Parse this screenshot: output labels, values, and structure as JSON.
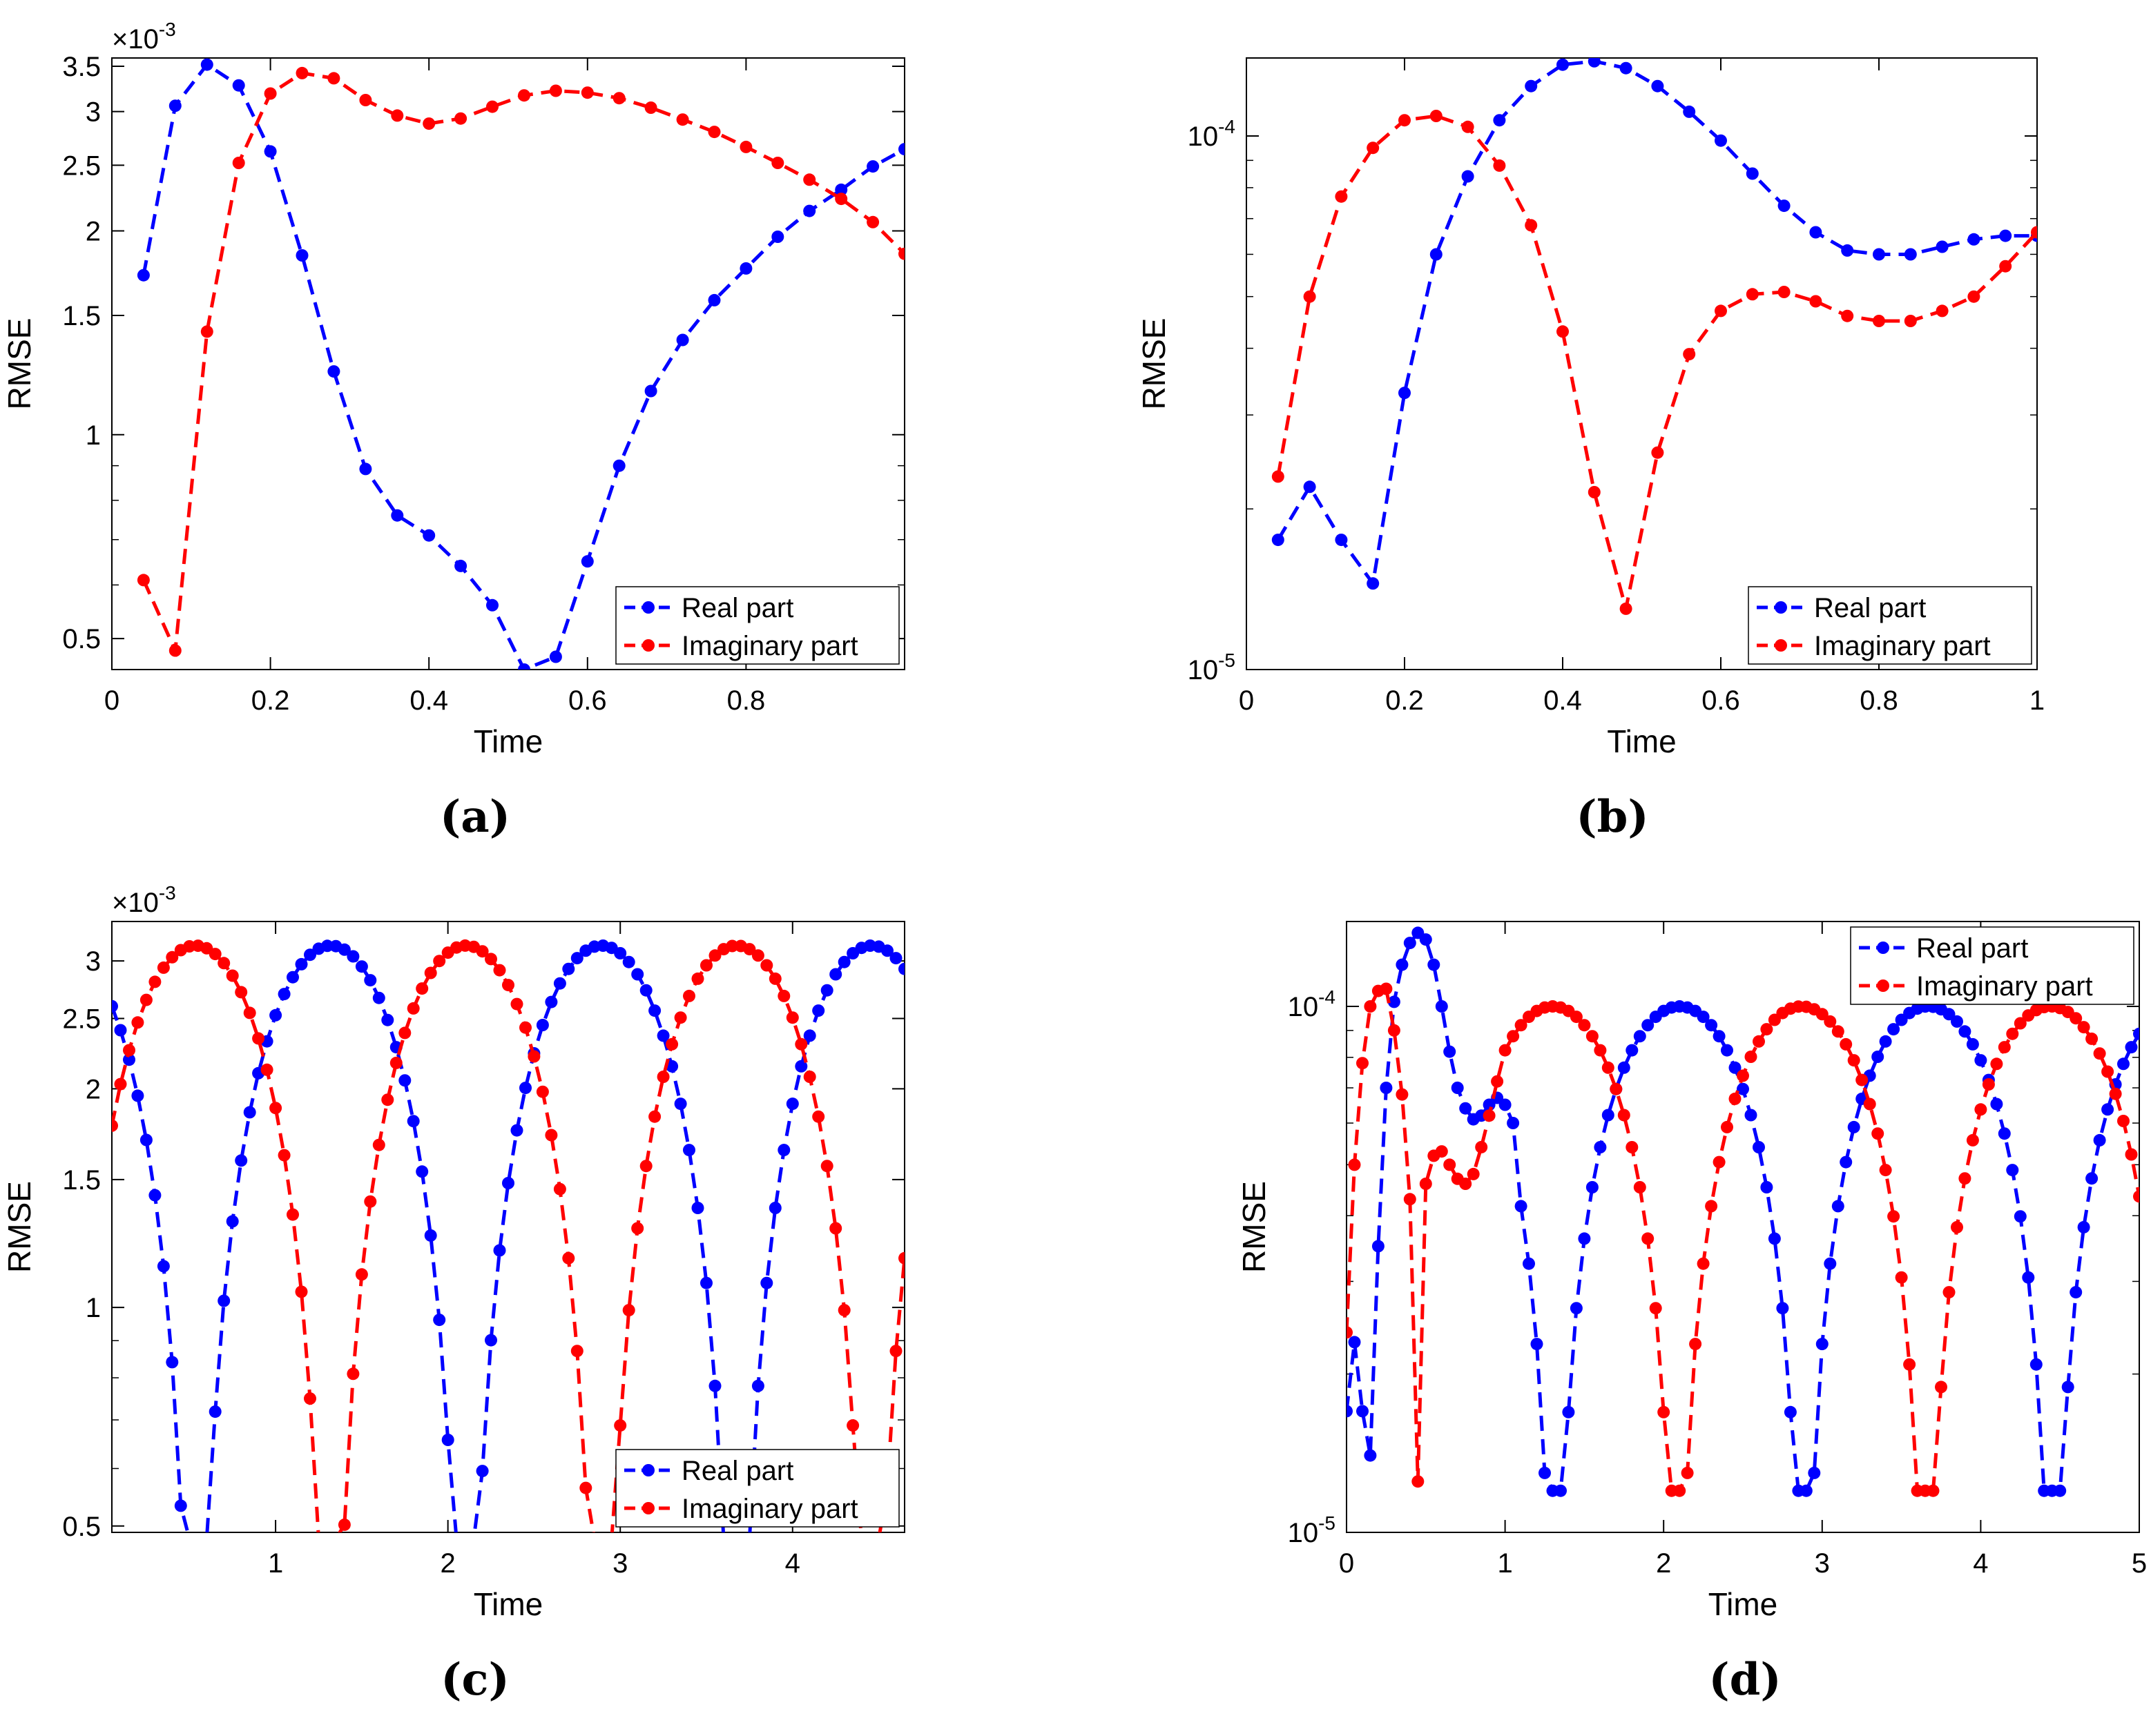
{
  "colors": {
    "real": "#0000ff",
    "imaginary": "#ff0000",
    "axis": "#000000",
    "tick_grid": "#c0c0c0"
  },
  "chart_data": [
    {
      "id": "a",
      "caption": "(a)",
      "type": "line",
      "yscale": "log",
      "title": "",
      "xlabel": "Time",
      "ylabel": "RMSE",
      "y_multiplier_label": "×10",
      "y_multiplier_exp": "-3",
      "xlim": [
        0,
        1
      ],
      "ylim": [
        0.45,
        3.6
      ],
      "xticks": [
        0,
        0.2,
        0.4,
        0.6,
        0.8
      ],
      "xtick_labels": [
        "0",
        "0.2",
        "0.4",
        "0.6",
        "0.8"
      ],
      "yticks": [
        0.5,
        1,
        1.5,
        2,
        2.5,
        3,
        3.5
      ],
      "ytick_labels": [
        "0.5",
        "1",
        "1.5",
        "2",
        "2.5",
        "3",
        "3.5"
      ],
      "minor_yticks": [
        0.6,
        0.7,
        0.8,
        0.9
      ],
      "legend_position": "bottom-right",
      "series": [
        {
          "name": "Real part",
          "color": "#0000ff",
          "x": [
            0.04,
            0.08,
            0.12,
            0.16,
            0.2,
            0.24,
            0.28,
            0.32,
            0.36,
            0.4,
            0.44,
            0.48,
            0.52,
            0.56,
            0.6,
            0.64,
            0.68,
            0.72,
            0.76,
            0.8,
            0.84,
            0.88,
            0.92,
            0.96,
            1.0
          ],
          "values": [
            1.72,
            3.06,
            3.52,
            3.28,
            2.62,
            1.84,
            1.24,
            0.89,
            0.76,
            0.71,
            0.64,
            0.56,
            0.45,
            0.47,
            0.65,
            0.9,
            1.16,
            1.38,
            1.58,
            1.76,
            1.96,
            2.14,
            2.3,
            2.49,
            2.64
          ]
        },
        {
          "name": "Imaginary part",
          "color": "#ff0000",
          "x": [
            0.04,
            0.08,
            0.12,
            0.16,
            0.2,
            0.24,
            0.28,
            0.32,
            0.36,
            0.4,
            0.44,
            0.48,
            0.52,
            0.56,
            0.6,
            0.64,
            0.68,
            0.72,
            0.76,
            0.8,
            0.84,
            0.88,
            0.92,
            0.96,
            1.0
          ],
          "values": [
            0.61,
            0.48,
            1.42,
            2.52,
            3.19,
            3.42,
            3.36,
            3.12,
            2.96,
            2.88,
            2.93,
            3.05,
            3.17,
            3.22,
            3.2,
            3.14,
            3.04,
            2.92,
            2.8,
            2.66,
            2.52,
            2.38,
            2.23,
            2.06,
            1.85
          ]
        }
      ]
    },
    {
      "id": "b",
      "caption": "(b)",
      "type": "line",
      "yscale": "log",
      "title": "",
      "xlabel": "Time",
      "ylabel": "RMSE",
      "xlim": [
        0,
        1
      ],
      "ylim": [
        1e-05,
        0.00014
      ],
      "xticks": [
        0,
        0.2,
        0.4,
        0.6,
        0.8,
        1
      ],
      "xtick_labels": [
        "0",
        "0.2",
        "0.4",
        "0.6",
        "0.8",
        "1"
      ],
      "yticks": [
        1e-05,
        0.0001
      ],
      "ytick_base": [
        "10",
        "10"
      ],
      "ytick_exp": [
        "-5",
        "-4"
      ],
      "minor_yticks": [
        2e-05,
        3e-05,
        4e-05,
        5e-05,
        6e-05,
        7e-05,
        8e-05,
        9e-05
      ],
      "legend_position": "bottom-right",
      "series": [
        {
          "name": "Real part",
          "color": "#0000ff",
          "x": [
            0.04,
            0.08,
            0.12,
            0.16,
            0.2,
            0.24,
            0.28,
            0.32,
            0.36,
            0.4,
            0.44,
            0.48,
            0.52,
            0.56,
            0.6,
            0.64,
            0.68,
            0.72,
            0.76,
            0.8,
            0.84,
            0.88,
            0.92,
            0.96,
            1.0
          ],
          "values": [
            1.75e-05,
            2.2e-05,
            1.75e-05,
            1.45e-05,
            3.3e-05,
            6e-05,
            8.4e-05,
            0.000107,
            0.000124,
            0.000136,
            0.000138,
            0.000134,
            0.000124,
            0.000111,
            9.8e-05,
            8.5e-05,
            7.4e-05,
            6.6e-05,
            6.1e-05,
            6e-05,
            6e-05,
            6.2e-05,
            6.4e-05,
            6.5e-05,
            6.5e-05
          ]
        },
        {
          "name": "Imaginary part",
          "color": "#ff0000",
          "x": [
            0.04,
            0.08,
            0.12,
            0.16,
            0.2,
            0.24,
            0.28,
            0.32,
            0.36,
            0.4,
            0.44,
            0.48,
            0.52,
            0.56,
            0.6,
            0.64,
            0.68,
            0.72,
            0.76,
            0.8,
            0.84,
            0.88,
            0.92,
            0.96,
            1.0
          ],
          "values": [
            2.3e-05,
            5e-05,
            7.7e-05,
            9.5e-05,
            0.000107,
            0.000109,
            0.000104,
            8.8e-05,
            6.8e-05,
            4.3e-05,
            2.15e-05,
            1.3e-05,
            2.55e-05,
            3.9e-05,
            4.7e-05,
            5.05e-05,
            5.1e-05,
            4.9e-05,
            4.6e-05,
            4.5e-05,
            4.5e-05,
            4.7e-05,
            5e-05,
            5.7e-05,
            6.6e-05
          ]
        }
      ]
    },
    {
      "id": "c",
      "caption": "(c)",
      "type": "line",
      "yscale": "log",
      "title": "",
      "xlabel": "Time",
      "ylabel": "RMSE",
      "y_multiplier_label": "×10",
      "y_multiplier_exp": "-3",
      "xlim": [
        0.05,
        4.65
      ],
      "ylim": [
        0.49,
        3.4
      ],
      "xticks": [
        1,
        2,
        3,
        4
      ],
      "xtick_labels": [
        "1",
        "2",
        "3",
        "4"
      ],
      "yticks": [
        0.5,
        1,
        1.5,
        2,
        2.5,
        3
      ],
      "ytick_labels": [
        "0.5",
        "1",
        "1.5",
        "2",
        "2.5",
        "3"
      ],
      "minor_yticks": [
        0.6,
        0.7,
        0.8,
        0.9
      ],
      "legend_position": "bottom-right",
      "series": [
        {
          "name": "Real part",
          "color": "#0000ff",
          "formula": "rectified cosine, amplitude 3.15, period 1.57, peak at t=1.32",
          "amplitude": 3.15,
          "period": 1.57,
          "peak_t": 1.32,
          "sample_step": 0.05,
          "floor": 0.48
        },
        {
          "name": "Imaginary part",
          "color": "#ff0000",
          "formula": "rectified sine, amplitude 3.15, period 1.57, peak at t=0.535",
          "amplitude": 3.15,
          "period": 1.57,
          "peak_t": 0.535,
          "sample_step": 0.05,
          "floor": 0.48
        }
      ]
    },
    {
      "id": "d",
      "caption": "(d)",
      "type": "line",
      "yscale": "log",
      "title": "",
      "xlabel": "Time",
      "ylabel": "RMSE",
      "xlim": [
        0,
        5
      ],
      "ylim": [
        1e-05,
        0.000145
      ],
      "xticks": [
        0,
        1,
        2,
        3,
        4,
        5
      ],
      "xtick_labels": [
        "0",
        "1",
        "2",
        "3",
        "4",
        "5"
      ],
      "yticks": [
        1e-05,
        0.0001
      ],
      "ytick_base": [
        "10",
        "10"
      ],
      "ytick_exp": [
        "-5",
        "-4"
      ],
      "minor_yticks": [
        2e-05,
        3e-05,
        4e-05,
        5e-05,
        6e-05,
        7e-05,
        8e-05,
        9e-05
      ],
      "legend_position": "top-right",
      "series": [
        {
          "name": "Real part",
          "color": "#0000ff",
          "formula": "early transient then rectified oscillation, amplitude 1.0e-4, period 1.57",
          "amplitude": 0.0001,
          "period": 1.57,
          "peak_t": 2.1,
          "sample_step": 0.05,
          "floor": 1.2e-05,
          "early_x": [
            0.0,
            0.05,
            0.1,
            0.15,
            0.2,
            0.25,
            0.3,
            0.35,
            0.4,
            0.45,
            0.5,
            0.55,
            0.6,
            0.65,
            0.7,
            0.75,
            0.8,
            0.85,
            0.9,
            0.95,
            1.0,
            1.05
          ],
          "early_values": [
            1.7e-05,
            2.3e-05,
            1.7e-05,
            1.4e-05,
            3.5e-05,
            7e-05,
            0.000102,
            0.00012,
            0.000132,
            0.000138,
            0.000134,
            0.00012,
            0.0001,
            8.2e-05,
            7e-05,
            6.4e-05,
            6.1e-05,
            6.2e-05,
            6.5e-05,
            6.7e-05,
            6.5e-05,
            6e-05
          ]
        },
        {
          "name": "Imaginary part",
          "color": "#ff0000",
          "formula": "early transient then rectified oscillation, amplitude 1.0e-4, period 1.57",
          "amplitude": 0.0001,
          "period": 1.57,
          "peak_t": 1.3,
          "sample_step": 0.05,
          "floor": 1.2e-05,
          "early_x": [
            0.0,
            0.05,
            0.1,
            0.15,
            0.2,
            0.25,
            0.3,
            0.35,
            0.4,
            0.45,
            0.5,
            0.55,
            0.6,
            0.65,
            0.7,
            0.75,
            0.8,
            0.85,
            0.9,
            0.95
          ],
          "early_values": [
            2.4e-05,
            5e-05,
            7.8e-05,
            0.0001,
            0.000107,
            0.000108,
            9e-05,
            6.8e-05,
            4.3e-05,
            1.25e-05,
            4.6e-05,
            5.2e-05,
            5.3e-05,
            5e-05,
            4.7e-05,
            4.6e-05,
            4.8e-05,
            5.4e-05,
            6.2e-05,
            7.2e-05
          ]
        }
      ]
    }
  ]
}
